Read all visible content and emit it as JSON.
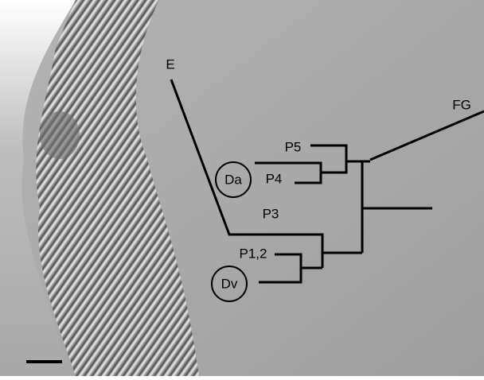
{
  "map": {
    "labels": {
      "e": "E",
      "fg": "FG",
      "p5": "P5",
      "p4": "P4",
      "da": "Da",
      "p3": "P3",
      "p12": "P1,2",
      "dv": "Dv"
    }
  }
}
